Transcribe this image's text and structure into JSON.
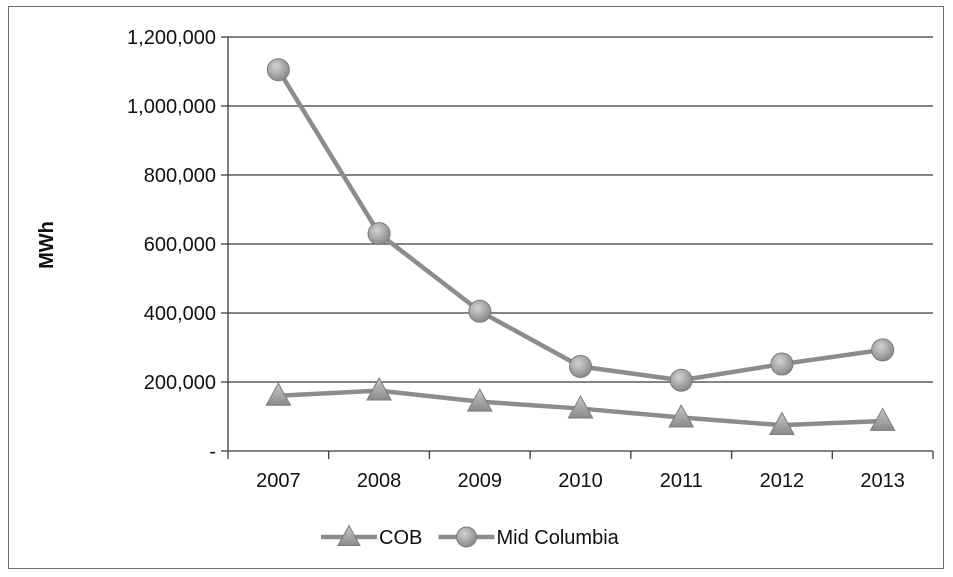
{
  "chart_data": {
    "type": "line",
    "title": "",
    "xlabel": "",
    "ylabel": "MWh",
    "categories": [
      "2007",
      "2008",
      "2009",
      "2010",
      "2011",
      "2012",
      "2013"
    ],
    "ylim": [
      0,
      1200000
    ],
    "yticks": [
      0,
      200000,
      400000,
      600000,
      800000,
      1000000,
      1200000
    ],
    "ytick_labels": [
      "-",
      "200,000",
      "400,000",
      "600,000",
      "800,000",
      "1,000,000",
      "1,200,000"
    ],
    "grid": true,
    "legend_position": "bottom",
    "series": [
      {
        "name": "COB",
        "marker": "triangle",
        "color": "#8c8c8c",
        "values": [
          160000,
          175000,
          143000,
          123000,
          97000,
          75000,
          87000
        ]
      },
      {
        "name": "Mid Columbia",
        "marker": "circle",
        "color": "#8c8c8c",
        "values": [
          1105000,
          630000,
          405000,
          245000,
          205000,
          252000,
          293000
        ]
      }
    ]
  }
}
